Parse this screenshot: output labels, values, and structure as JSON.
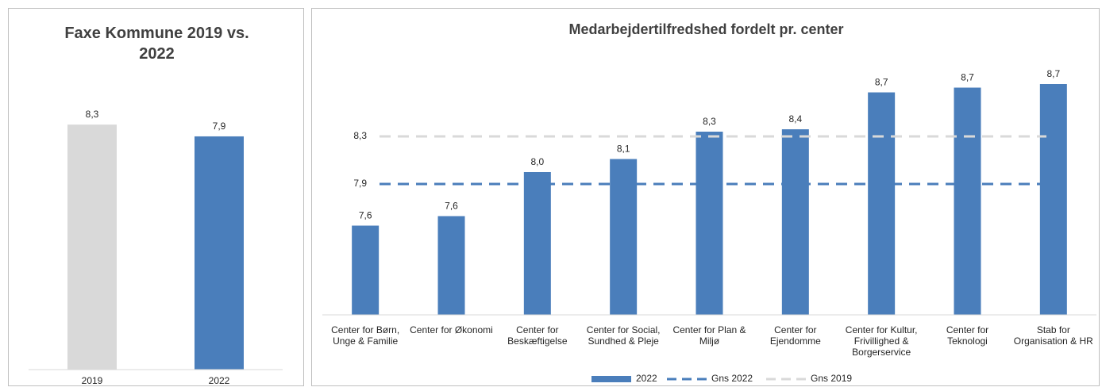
{
  "chart_data": [
    {
      "type": "bar",
      "title": "Faxe Kommune 2019 vs. 2022",
      "categories": [
        "2019",
        "2022"
      ],
      "values": [
        8.3,
        7.9
      ],
      "value_labels": [
        "8,3",
        "7,9"
      ],
      "colors": [
        "#d9d9d9",
        "#4a7ebb"
      ],
      "ylim": [
        0,
        9
      ]
    },
    {
      "type": "bar",
      "title": "Medarbejdertilfredshed fordelt pr. center",
      "categories": [
        "Center for Børn, Unge & Familie",
        "Center for Økonomi",
        "Center for Beskæftigelse",
        "Center for Social, Sundhed & Pleje",
        "Center for Plan & Miljø",
        "Center for Ejendomme",
        "Center for Kultur, Frivillighed & Borgerservice",
        "Center for Teknologi",
        "Stab for Organisation & HR"
      ],
      "series": [
        {
          "name": "2022",
          "color": "#4a7ebb",
          "values": [
            7.55,
            7.63,
            8.0,
            8.11,
            8.34,
            8.36,
            8.67,
            8.71,
            8.74
          ],
          "value_labels": [
            "7,6",
            "7,6",
            "8,0",
            "8,1",
            "8,3",
            "8,4",
            "8,7",
            "8,7",
            "8,7"
          ]
        }
      ],
      "reference_lines": [
        {
          "name": "Gns 2022",
          "value": 7.9,
          "value_label": "7,9",
          "color": "#4a7ebb"
        },
        {
          "name": "Gns 2019",
          "value": 8.3,
          "value_label": "8,3",
          "color": "#d9d9d9"
        }
      ],
      "ylim": [
        6.8,
        9.0
      ]
    }
  ]
}
